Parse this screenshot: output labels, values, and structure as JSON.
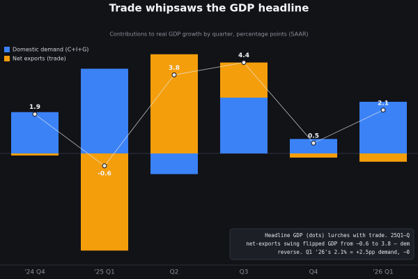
{
  "chart_data": {
    "type": "bar",
    "title": "Trade whipsaws the GDP headline",
    "subtitle": "Contributions to real GDP growth by quarter, percentage points (SAAR)",
    "categories": [
      "'24 Q4",
      "'25 Q1",
      "Q2",
      "Q3",
      "Q4",
      "'26 Q1"
    ],
    "series": [
      {
        "name": "Domestic demand (C+I+G)",
        "color": "#3b82f6",
        "values": [
          2.0,
          4.1,
          -1.0,
          2.7,
          0.7,
          2.5
        ]
      },
      {
        "name": "Net exports (trade)",
        "color": "#f59e0b",
        "values": [
          -0.1,
          -4.7,
          4.8,
          1.7,
          -0.2,
          -0.4
        ]
      }
    ],
    "headline": {
      "color": "#e5e7eb",
      "values": [
        1.9,
        -0.6,
        3.8,
        4.4,
        0.5,
        2.1
      ]
    },
    "annotation": [
      "Headline GDP (dots) lurches with trade. 25Q1–Q",
      "net-exports swing flipped GDP from −0.6 to 3.8 — dem",
      "reverse. Q1 '26's 2.1% = +2.5pp demand, −0"
    ],
    "ylim": [
      -5.4,
      5.4
    ]
  }
}
